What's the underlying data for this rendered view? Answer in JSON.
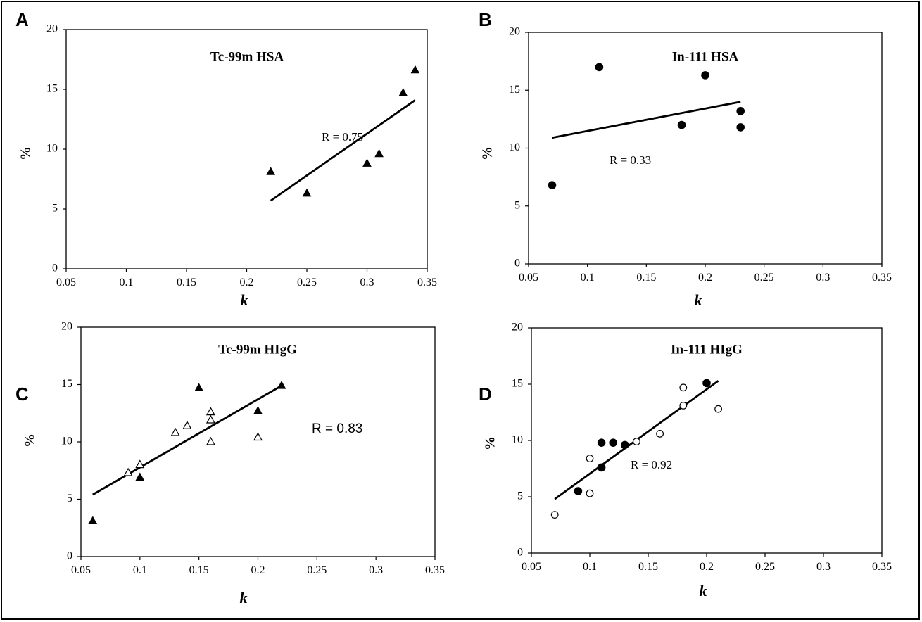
{
  "chart_data": [
    {
      "panel": "A",
      "type": "scatter",
      "title": "Tc-99m HSA",
      "xlabel": "k",
      "ylabel": "%",
      "xlim": [
        0.05,
        0.35
      ],
      "ylim": [
        0,
        20
      ],
      "x_ticks": [
        "0.05",
        "0.1",
        "0.15",
        "0.2",
        "0.25",
        "0.3",
        "0.35"
      ],
      "y_ticks": [
        "0",
        "5",
        "10",
        "15",
        "20"
      ],
      "annotation": "R = 0.75",
      "series": [
        {
          "marker": "filled-triangle",
          "points": [
            [
              0.22,
              8.1
            ],
            [
              0.25,
              6.3
            ],
            [
              0.3,
              8.8
            ],
            [
              0.31,
              9.6
            ],
            [
              0.33,
              14.7
            ],
            [
              0.34,
              16.6
            ]
          ]
        }
      ],
      "trendline": [
        [
          0.22,
          5.7
        ],
        [
          0.34,
          14.1
        ]
      ]
    },
    {
      "panel": "B",
      "type": "scatter",
      "title": "In-111 HSA",
      "xlabel": "k",
      "ylabel": "%",
      "xlim": [
        0.05,
        0.35
      ],
      "ylim": [
        0,
        20
      ],
      "x_ticks": [
        "0.05",
        "0.1",
        "0.15",
        "0.2",
        "0.25",
        "0.3",
        "0.35"
      ],
      "y_ticks": [
        "0",
        "5",
        "10",
        "15",
        "20"
      ],
      "annotation": "R = 0.33",
      "series": [
        {
          "marker": "filled-circle",
          "points": [
            [
              0.07,
              6.8
            ],
            [
              0.11,
              17.0
            ],
            [
              0.18,
              12.0
            ],
            [
              0.2,
              16.3
            ],
            [
              0.23,
              13.2
            ],
            [
              0.23,
              11.8
            ]
          ]
        }
      ],
      "trendline": [
        [
          0.07,
          10.9
        ],
        [
          0.23,
          14.0
        ]
      ]
    },
    {
      "panel": "C",
      "type": "scatter",
      "title": "Tc-99m HIgG",
      "xlabel": "k",
      "ylabel": "%",
      "xlim": [
        0.05,
        0.35
      ],
      "ylim": [
        0,
        20
      ],
      "x_ticks": [
        "0.05",
        "0.1",
        "0.15",
        "0.2",
        "0.25",
        "0.3",
        "0.35"
      ],
      "y_ticks": [
        "0",
        "5",
        "10",
        "15",
        "20"
      ],
      "annotation": "R = 0.83",
      "series": [
        {
          "marker": "filled-triangle",
          "points": [
            [
              0.06,
              3.1
            ],
            [
              0.1,
              6.9
            ],
            [
              0.15,
              14.7
            ],
            [
              0.2,
              12.7
            ],
            [
              0.22,
              14.9
            ]
          ]
        },
        {
          "marker": "open-triangle",
          "points": [
            [
              0.09,
              7.3
            ],
            [
              0.1,
              8.0
            ],
            [
              0.13,
              10.8
            ],
            [
              0.14,
              11.4
            ],
            [
              0.16,
              12.6
            ],
            [
              0.16,
              11.9
            ],
            [
              0.16,
              10.0
            ],
            [
              0.2,
              10.4
            ]
          ]
        }
      ],
      "trendline": [
        [
          0.06,
          5.4
        ],
        [
          0.22,
          14.9
        ]
      ]
    },
    {
      "panel": "D",
      "type": "scatter",
      "title": "In-111 HIgG",
      "xlabel": "k",
      "ylabel": "%",
      "xlim": [
        0.05,
        0.35
      ],
      "ylim": [
        0,
        20
      ],
      "x_ticks": [
        "0.05",
        "0.1",
        "0.15",
        "0.2",
        "0.25",
        "0.3",
        "0.35"
      ],
      "y_ticks": [
        "0",
        "5",
        "10",
        "15",
        "20"
      ],
      "annotation": "R = 0.92",
      "series": [
        {
          "marker": "filled-circle",
          "points": [
            [
              0.09,
              5.5
            ],
            [
              0.11,
              9.8
            ],
            [
              0.11,
              7.6
            ],
            [
              0.12,
              9.8
            ],
            [
              0.13,
              9.6
            ],
            [
              0.2,
              15.1
            ]
          ]
        },
        {
          "marker": "open-circle",
          "points": [
            [
              0.07,
              3.4
            ],
            [
              0.1,
              8.4
            ],
            [
              0.1,
              5.3
            ],
            [
              0.14,
              9.9
            ],
            [
              0.16,
              10.6
            ],
            [
              0.18,
              14.7
            ],
            [
              0.18,
              13.1
            ],
            [
              0.21,
              12.8
            ]
          ]
        }
      ],
      "trendline": [
        [
          0.07,
          4.8
        ],
        [
          0.21,
          15.3
        ]
      ]
    }
  ]
}
